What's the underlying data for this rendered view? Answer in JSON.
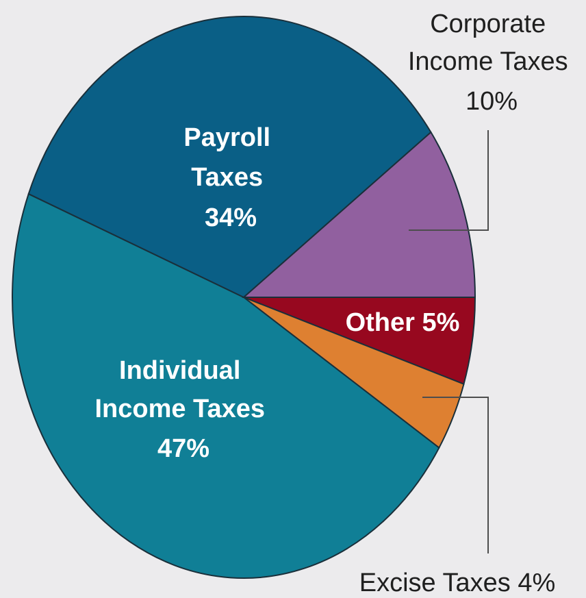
{
  "chart_data": {
    "type": "pie",
    "title": "",
    "slices": [
      {
        "label": [
          "Individual",
          "Income Taxes",
          "47%"
        ],
        "value": 47,
        "color": "#107f96"
      },
      {
        "label": [
          "Payroll",
          "Taxes",
          "34%"
        ],
        "value": 34,
        "color": "#0a5f86"
      },
      {
        "label": [
          "Corporate",
          "Income Taxes",
          "10%"
        ],
        "value": 10,
        "color": "#91609f"
      },
      {
        "label": [
          "Other 5%"
        ],
        "value": 5,
        "color": "#97081f"
      },
      {
        "label": [
          "Excise Taxes 4%"
        ],
        "value": 4,
        "color": "#de8031"
      }
    ],
    "background": "#ecebed"
  }
}
